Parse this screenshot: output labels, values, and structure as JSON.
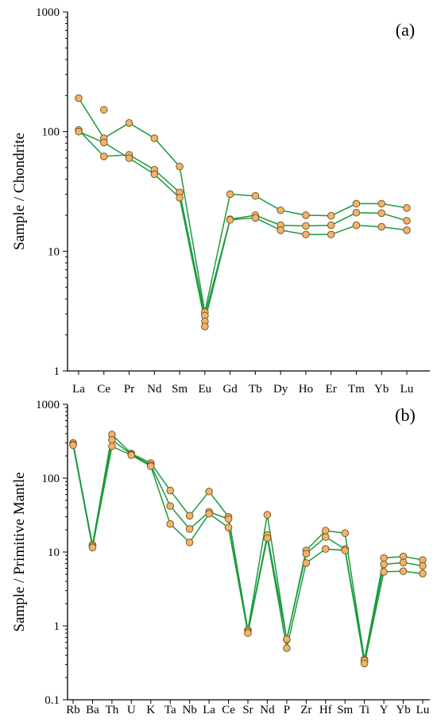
{
  "chart_data": [
    {
      "panel_label": "(a)",
      "type": "line",
      "scale": "log",
      "ylabel": "Sample / Chondrite",
      "ylim": [
        1,
        1000
      ],
      "yticks": [
        1,
        10,
        100,
        1000
      ],
      "ytick_labels": [
        "1",
        "10",
        "100",
        "1000"
      ],
      "grid": false,
      "categories": [
        "La",
        "Ce",
        "Pr",
        "Nd",
        "Sm",
        "Eu",
        "Gd",
        "Tb",
        "Dy",
        "Ho",
        "Er",
        "Tm",
        "Yb",
        "Lu"
      ],
      "series": [
        {
          "values": [
            190,
            88,
            118,
            88,
            51,
            3.1,
            30,
            29,
            22,
            20,
            19.8,
            25,
            25,
            23
          ],
          "connected": [
            true,
            true,
            true,
            true,
            true,
            true,
            true,
            true,
            true,
            true,
            true,
            true,
            true,
            true
          ]
        },
        {
          "values": [
            103,
            62,
            64,
            48,
            31,
            2.9,
            18.5,
            20,
            16.5,
            16.3,
            16.5,
            21,
            20.8,
            18
          ],
          "connected": [
            true,
            true,
            true,
            true,
            true,
            true,
            true,
            true,
            true,
            true,
            true,
            true,
            true,
            true
          ]
        },
        {
          "values": [
            100,
            81,
            60,
            44,
            28,
            2.6,
            18.3,
            19,
            15,
            13.8,
            13.8,
            16.5,
            16,
            15
          ],
          "connected": [
            true,
            true,
            true,
            true,
            true,
            true,
            true,
            true,
            true,
            true,
            true,
            true,
            true,
            true
          ]
        }
      ],
      "extra_points": [
        {
          "category": "Ce",
          "value": 152
        },
        {
          "category": "Eu",
          "value": 2.35
        }
      ]
    },
    {
      "panel_label": "(b)",
      "type": "line",
      "scale": "log",
      "ylabel": "Sample / Primitive Mantle",
      "ylim": [
        0.1,
        1000
      ],
      "yticks": [
        0.1,
        1,
        10,
        100,
        1000
      ],
      "ytick_labels": [
        "0.1",
        "1",
        "10",
        "100",
        "1000"
      ],
      "grid": false,
      "categories": [
        "Rb",
        "Ba",
        "Th",
        "U",
        "K",
        "Ta",
        "Nb",
        "La",
        "Ce",
        "Sr",
        "Nd",
        "P",
        "Zr",
        "Hf",
        "Sm",
        "Ti",
        "Y",
        "Yb",
        "Lu"
      ],
      "series": [
        {
          "values": [
            300,
            12.5,
            390,
            215,
            160,
            68,
            31,
            66,
            30,
            0.88,
            32,
            0.65,
            10.5,
            19.5,
            18,
            0.35,
            8.3,
            8.7,
            7.8
          ]
        },
        {
          "values": [
            285,
            12,
            330,
            210,
            150,
            42,
            20.5,
            35,
            28,
            0.84,
            17,
            0.66,
            9.5,
            16,
            11,
            0.34,
            6.8,
            7.2,
            6.5
          ]
        },
        {
          "values": [
            280,
            11.5,
            270,
            205,
            145,
            24,
            13.5,
            33,
            21.5,
            0.8,
            15.5,
            0.5,
            7.1,
            11,
            10.5,
            0.31,
            5.4,
            5.5,
            5.1
          ]
        }
      ],
      "extra_points": []
    }
  ]
}
